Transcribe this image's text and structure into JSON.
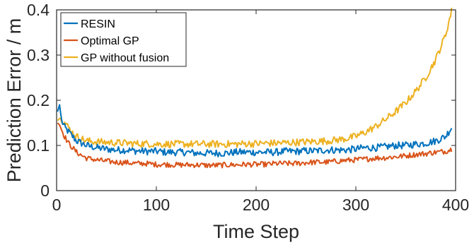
{
  "chart_data": {
    "type": "line",
    "title": "",
    "xlabel": "Time Step",
    "ylabel": "Prediction Error / m",
    "xlim": [
      0,
      400
    ],
    "ylim": [
      0,
      0.4
    ],
    "x_ticks": [
      "0",
      "100",
      "200",
      "300",
      "400"
    ],
    "y_ticks": [
      "0",
      "0.1",
      "0.2",
      "0.3",
      "0.4"
    ],
    "grid": false,
    "legend_position": "top-left",
    "series": [
      {
        "name": "RESIN",
        "color": "#0072BD",
        "x": [
          1,
          3,
          5,
          8,
          12,
          16,
          20,
          25,
          30,
          40,
          50,
          60,
          70,
          80,
          90,
          100,
          110,
          120,
          130,
          140,
          150,
          160,
          170,
          180,
          190,
          200,
          210,
          220,
          230,
          240,
          250,
          260,
          270,
          280,
          290,
          300,
          310,
          320,
          330,
          340,
          350,
          360,
          370,
          380,
          390,
          396
        ],
        "y": [
          0.175,
          0.19,
          0.155,
          0.14,
          0.13,
          0.12,
          0.11,
          0.105,
          0.1,
          0.095,
          0.092,
          0.09,
          0.09,
          0.088,
          0.087,
          0.087,
          0.085,
          0.085,
          0.085,
          0.083,
          0.083,
          0.083,
          0.083,
          0.085,
          0.085,
          0.085,
          0.085,
          0.085,
          0.087,
          0.087,
          0.088,
          0.088,
          0.09,
          0.09,
          0.09,
          0.092,
          0.095,
          0.095,
          0.097,
          0.1,
          0.1,
          0.103,
          0.105,
          0.11,
          0.12,
          0.14
        ]
      },
      {
        "name": "Optimal GP",
        "color": "#D95319",
        "x": [
          1,
          3,
          5,
          8,
          12,
          16,
          20,
          25,
          30,
          40,
          50,
          60,
          70,
          80,
          90,
          100,
          110,
          120,
          130,
          140,
          150,
          160,
          170,
          180,
          190,
          200,
          210,
          220,
          230,
          240,
          250,
          260,
          270,
          280,
          290,
          300,
          310,
          320,
          330,
          340,
          350,
          360,
          370,
          380,
          390,
          396
        ],
        "y": [
          0.15,
          0.145,
          0.135,
          0.12,
          0.105,
          0.095,
          0.085,
          0.078,
          0.072,
          0.068,
          0.065,
          0.063,
          0.062,
          0.06,
          0.06,
          0.058,
          0.058,
          0.057,
          0.057,
          0.057,
          0.056,
          0.056,
          0.057,
          0.057,
          0.058,
          0.058,
          0.058,
          0.06,
          0.06,
          0.06,
          0.062,
          0.063,
          0.063,
          0.065,
          0.067,
          0.068,
          0.07,
          0.072,
          0.073,
          0.075,
          0.077,
          0.08,
          0.082,
          0.085,
          0.087,
          0.092
        ]
      },
      {
        "name": "GP without fusion",
        "color": "#EDB120",
        "x": [
          1,
          3,
          5,
          8,
          12,
          16,
          20,
          25,
          30,
          40,
          50,
          60,
          70,
          80,
          90,
          100,
          110,
          120,
          130,
          140,
          150,
          160,
          170,
          180,
          190,
          200,
          210,
          220,
          230,
          240,
          250,
          260,
          270,
          280,
          290,
          300,
          310,
          320,
          330,
          340,
          350,
          360,
          370,
          380,
          390,
          396
        ],
        "y": [
          0.155,
          0.16,
          0.16,
          0.15,
          0.14,
          0.128,
          0.12,
          0.115,
          0.11,
          0.108,
          0.107,
          0.106,
          0.105,
          0.104,
          0.104,
          0.103,
          0.103,
          0.103,
          0.103,
          0.103,
          0.103,
          0.103,
          0.103,
          0.103,
          0.104,
          0.104,
          0.105,
          0.105,
          0.106,
          0.107,
          0.108,
          0.109,
          0.11,
          0.112,
          0.115,
          0.12,
          0.13,
          0.142,
          0.158,
          0.175,
          0.195,
          0.22,
          0.25,
          0.29,
          0.345,
          0.398
        ]
      }
    ]
  }
}
